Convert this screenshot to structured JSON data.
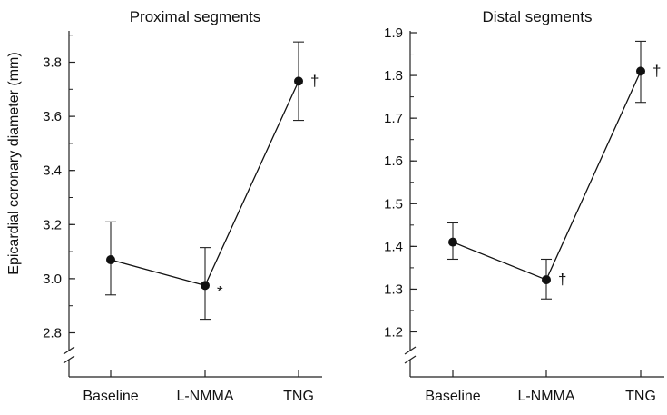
{
  "ylabel": "Epicardial coronary diameter (mm)",
  "chart_data": [
    {
      "type": "line",
      "title": "Proximal segments",
      "categories": [
        "Baseline",
        "L-NMMA",
        "TNG"
      ],
      "values": [
        3.07,
        2.975,
        3.73
      ],
      "error_low": [
        2.94,
        2.85,
        3.585
      ],
      "error_high": [
        3.21,
        3.115,
        3.875
      ],
      "annotations": [
        "",
        "*",
        "†"
      ],
      "yticks": [
        "2.8",
        "3.0",
        "3.2",
        "3.4",
        "3.6",
        "3.8"
      ],
      "ylim": [
        2.75,
        3.9
      ],
      "axis_break": true,
      "grid": false
    },
    {
      "type": "line",
      "title": "Distal segments",
      "categories": [
        "Baseline",
        "L-NMMA",
        "TNG"
      ],
      "values": [
        1.41,
        1.322,
        1.81
      ],
      "error_low": [
        1.37,
        1.277,
        1.737
      ],
      "error_high": [
        1.455,
        1.37,
        1.88
      ],
      "annotations": [
        "",
        "†",
        "†"
      ],
      "yticks": [
        "1.2",
        "1.3",
        "1.4",
        "1.5",
        "1.6",
        "1.7",
        "1.8",
        "1.9"
      ],
      "ylim": [
        1.175,
        1.9
      ],
      "axis_break": true,
      "grid": false
    }
  ]
}
